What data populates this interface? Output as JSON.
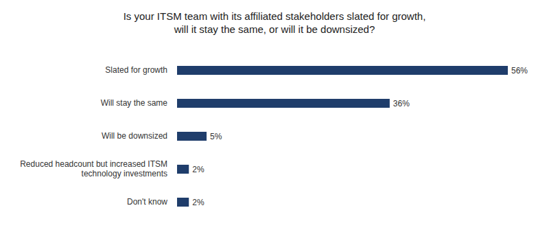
{
  "chart_data": {
    "type": "bar",
    "title": "Is your ITSM team with its affiliated stakeholders slated for growth,\nwill it stay the same, or will it be downsized?",
    "categories": [
      "Slated for growth",
      "Will stay the same",
      "Will be downsized",
      "Reduced headcount but increased ITSM technology investments",
      "Don't know"
    ],
    "values": [
      56,
      36,
      5,
      2,
      2
    ],
    "value_labels": [
      "56%",
      "36%",
      "5%",
      "2%",
      "2%"
    ],
    "color": "#1f3d6b",
    "orientation": "horizontal",
    "data_labels": true,
    "tick_labels": "y",
    "grid": false
  }
}
